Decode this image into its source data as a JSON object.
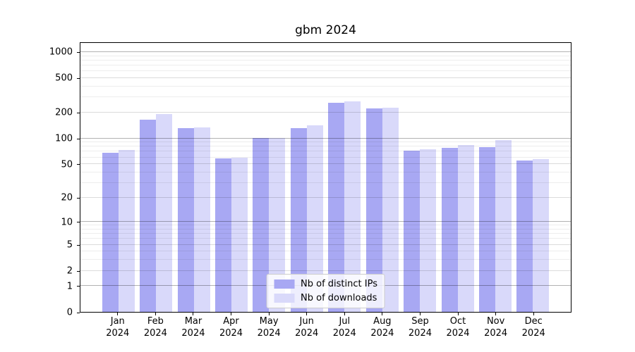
{
  "chart_data": {
    "type": "bar",
    "title": "gbm 2024",
    "categories": [
      "Jan",
      "Feb",
      "Mar",
      "Apr",
      "May",
      "Jun",
      "Jul",
      "Aug",
      "Sep",
      "Oct",
      "Nov",
      "Dec"
    ],
    "x_year": "2024",
    "series": [
      {
        "name": "Nb of distinct IPs",
        "color": "#a8a8f3",
        "values": [
          68,
          163,
          130,
          58,
          100,
          130,
          258,
          220,
          72,
          77,
          79,
          55
        ]
      },
      {
        "name": "Nb of downloads",
        "color": "#d9d9fa",
        "values": [
          73,
          189,
          134,
          59,
          100,
          141,
          266,
          224,
          74,
          83,
          94,
          57
        ]
      }
    ],
    "y_ticks": [
      0,
      1,
      2,
      5,
      10,
      20,
      50,
      100,
      200,
      500,
      1000
    ],
    "y_minor_gridlines": [
      3,
      4,
      6,
      7,
      8,
      9,
      30,
      40,
      60,
      70,
      80,
      90,
      300,
      400,
      600,
      700,
      800,
      900
    ],
    "y_scale": "log10(1+v)",
    "ylim": [
      0,
      1310
    ],
    "xlabel": "",
    "ylabel": "",
    "grid": true,
    "legend_position": "lower center"
  },
  "colors": {
    "bar_dark": "#a8a8f3",
    "bar_light": "#d9d9fa",
    "grid_major": "rgba(0,0,0,0.30)",
    "grid_mid": "rgba(0,0,0,0.14)",
    "grid_minor": "rgba(0,0,0,0.07)",
    "spine": "#000000",
    "legend_border": "#cccccc"
  }
}
